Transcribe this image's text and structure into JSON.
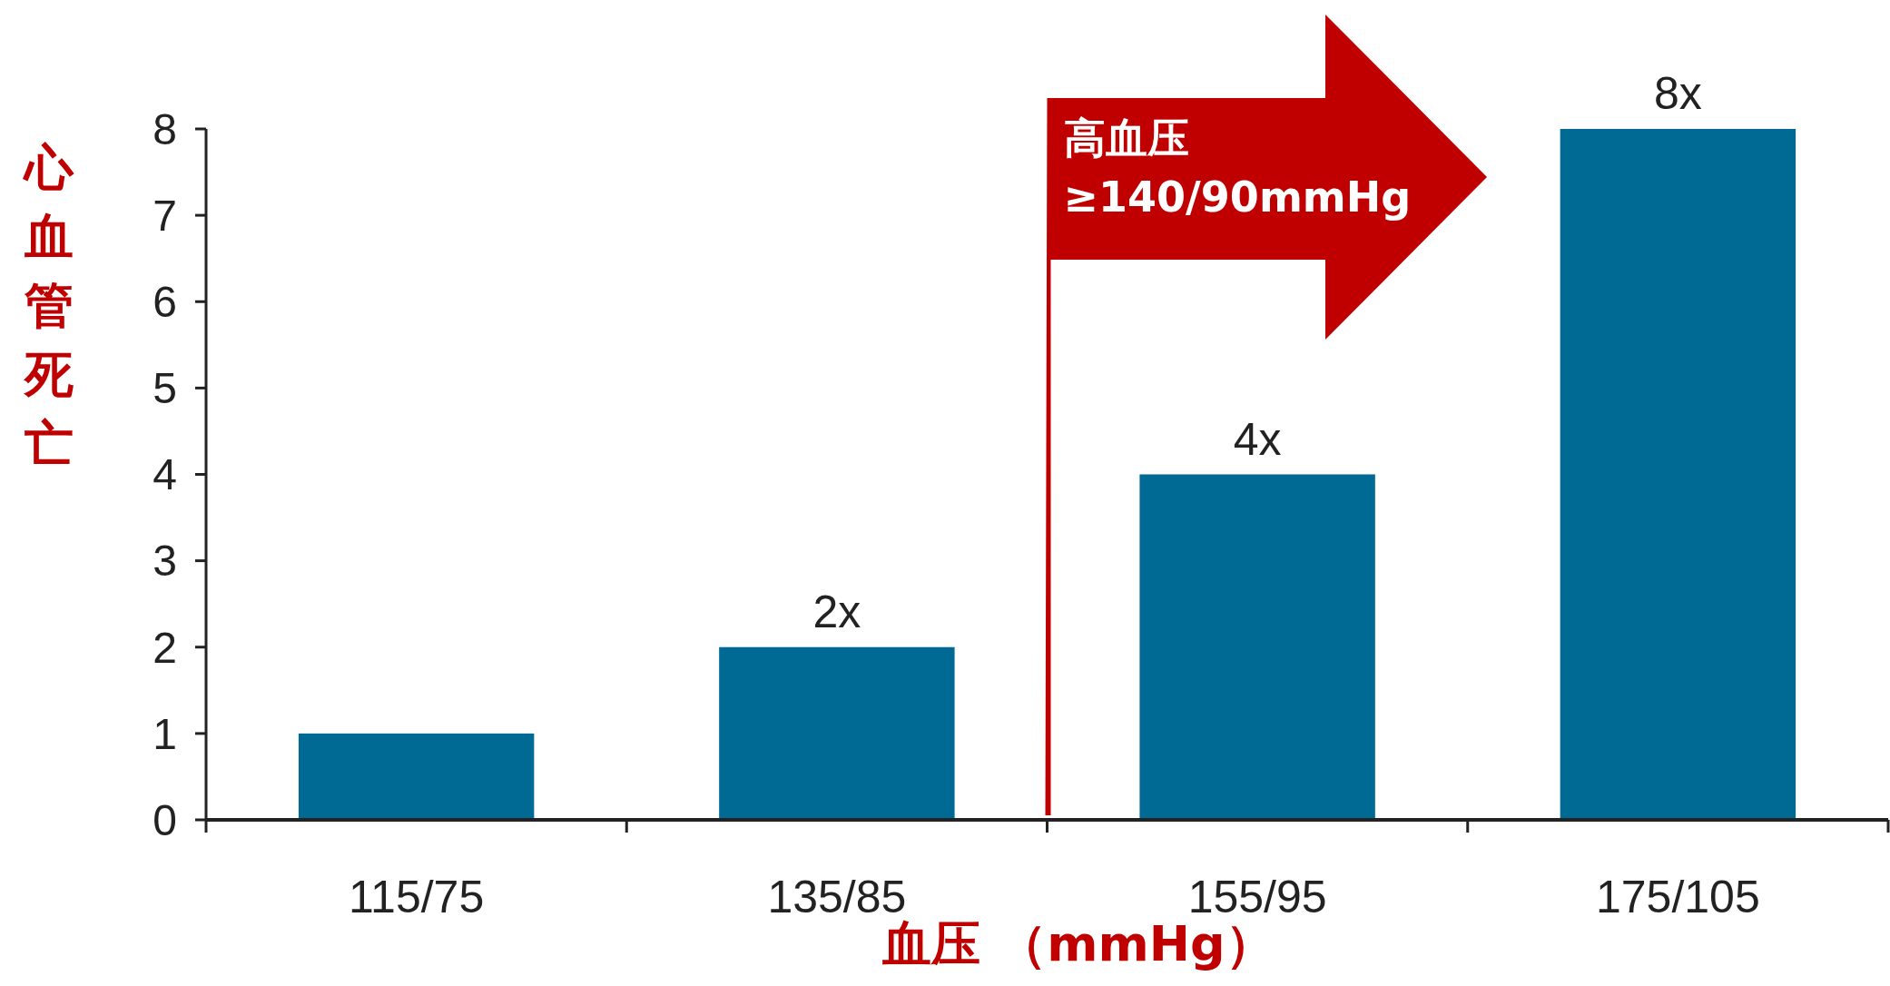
{
  "chart_data": {
    "type": "bar",
    "xlabel": "血压 （mmHg）",
    "ylabel": "心血管死亡",
    "categories": [
      "115/75",
      "135/85",
      "155/95",
      "175/105"
    ],
    "values": [
      1,
      2,
      4,
      8
    ],
    "color": "#006994",
    "value_labels": [
      null,
      "2x",
      "4x",
      "8x"
    ],
    "ylim": [
      0,
      8
    ],
    "yticks": [
      0,
      1,
      2,
      3,
      4,
      5,
      6,
      7,
      8
    ],
    "grid": false,
    "annotations": [
      "高血压",
      "≥140/90mmHg"
    ]
  }
}
